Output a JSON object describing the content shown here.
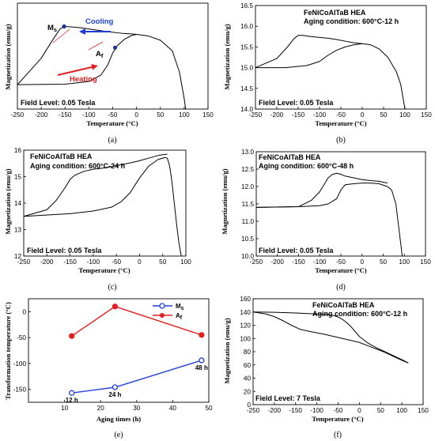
{
  "figure": {
    "captions": [
      "(a)",
      "(b)",
      "(c)",
      "(d)",
      "(e)",
      "(f)"
    ]
  },
  "chart_data": [
    {
      "id": "a",
      "type": "line",
      "xlabel": "Temperature (°C)",
      "ylabel": "Magnetization (emu/g)",
      "xlim": [
        -250,
        150
      ],
      "xticks": [
        -250,
        -200,
        -150,
        -100,
        -50,
        0,
        50,
        100,
        150
      ],
      "ylim": [
        0,
        10
      ],
      "yticks": [],
      "notes": [
        "Field Level: 0.05 Tesla"
      ],
      "annotations": {
        "ms": "M",
        "ms_sub": "s",
        "af": "A",
        "af_sub": "f",
        "cooling": "Cooling",
        "heating": "Heating"
      },
      "colors": {
        "curve": "#000000",
        "cooling": "#1f3fd8",
        "heating": "#e02020",
        "marker": "#1f2fa0"
      },
      "series": [
        {
          "x": [
            -250,
            -200,
            -175,
            -160,
            -150,
            -120,
            -90,
            -60,
            -30,
            -10,
            0
          ],
          "y": [
            2.3,
            4.8,
            6.6,
            7.6,
            7.8,
            7.7,
            7.5,
            7.3,
            7.15,
            7.1,
            7.05
          ]
        },
        {
          "x": [
            -250,
            -150,
            -100,
            -75,
            -60,
            -50,
            -40,
            -25,
            -10,
            0,
            25,
            50,
            75,
            90,
            100,
            103
          ],
          "y": [
            2.3,
            2.35,
            2.6,
            3.2,
            4.2,
            5.3,
            6.0,
            6.6,
            6.95,
            7.05,
            6.9,
            6.5,
            5.5,
            3.5,
            1.0,
            0.0
          ]
        }
      ],
      "markers": [
        {
          "x": -152,
          "y": 7.8
        },
        {
          "x": -45,
          "y": 5.8
        }
      ]
    },
    {
      "id": "b",
      "type": "line",
      "title_lines": [
        "FeNiCoAlTaB HEA",
        "Aging condition: 600°C-12 h"
      ],
      "xlabel": "Temperature (°C)",
      "ylabel": "Magnetization (emu/g)",
      "xlim": [
        -250,
        150
      ],
      "xticks": [
        -250,
        -200,
        -150,
        -100,
        -50,
        0,
        50,
        100,
        150
      ],
      "ylim": [
        14.0,
        16.5
      ],
      "yticks": [
        14.0,
        14.5,
        15.0,
        15.5,
        16.0,
        16.5
      ],
      "notes": [
        "Field Level: 0.05 Tesla"
      ],
      "series": [
        {
          "x": [
            -250,
            -200,
            -175,
            -160,
            -150,
            -140,
            -120,
            -100,
            -80,
            -60,
            -40,
            -20,
            0
          ],
          "y": [
            15.0,
            15.22,
            15.5,
            15.7,
            15.78,
            15.78,
            15.75,
            15.73,
            15.71,
            15.68,
            15.64,
            15.6,
            15.58
          ]
        },
        {
          "x": [
            -250,
            -180,
            -130,
            -100,
            -80,
            -60,
            -40,
            -20,
            0,
            20,
            40,
            60,
            80,
            90,
            95,
            100
          ],
          "y": [
            15.0,
            15.0,
            15.05,
            15.15,
            15.3,
            15.42,
            15.5,
            15.55,
            15.58,
            15.55,
            15.45,
            15.25,
            14.9,
            14.6,
            14.3,
            14.0
          ]
        }
      ]
    },
    {
      "id": "c",
      "type": "line",
      "title_lines": [
        "FeNiCoAlTaB HEA",
        "Aging condition: 600°C-24 h"
      ],
      "xlabel": "Temperature (°C)",
      "ylabel": "Magnetization (emu/g)",
      "xlim": [
        -250,
        100
      ],
      "xticks": [
        -250,
        -200,
        -150,
        -100,
        -50,
        0,
        50,
        100
      ],
      "ylim": [
        12,
        16
      ],
      "yticks": [
        12,
        13,
        14,
        15,
        16
      ],
      "notes": [
        "Field Level: 0.05 Tesla"
      ],
      "series": [
        {
          "x": [
            -250,
            -200,
            -180,
            -160,
            -150,
            -140,
            -120,
            -100,
            -80,
            -60,
            -40,
            -20,
            0,
            20,
            40,
            50,
            60
          ],
          "y": [
            13.5,
            13.75,
            14.1,
            14.6,
            14.9,
            15.05,
            15.2,
            15.28,
            15.32,
            15.38,
            15.45,
            15.52,
            15.6,
            15.7,
            15.8,
            15.83,
            15.85
          ]
        },
        {
          "x": [
            -250,
            -150,
            -100,
            -60,
            -40,
            -20,
            0,
            20,
            40,
            55,
            60,
            65,
            70,
            75,
            80,
            85,
            90
          ],
          "y": [
            13.5,
            13.6,
            13.7,
            13.85,
            14.05,
            14.4,
            14.95,
            15.4,
            15.65,
            15.72,
            15.7,
            15.4,
            14.8,
            14.0,
            13.2,
            12.5,
            12.0
          ]
        }
      ]
    },
    {
      "id": "d",
      "type": "line",
      "title_lines": [
        "FeNiCoAlTaB HEA",
        "Aging condition: 600°C-48 h"
      ],
      "xlabel": "Temperature (°C)",
      "ylabel": "Magnetization (emu/g)",
      "xlim": [
        -250,
        150
      ],
      "xticks": [
        -250,
        -200,
        -150,
        -100,
        -50,
        0,
        50,
        100,
        150
      ],
      "ylim": [
        10.0,
        13.0
      ],
      "yticks": [
        10.0,
        10.5,
        11.0,
        11.5,
        12.0,
        12.5,
        13.0
      ],
      "notes": [
        "Field Level: 0.05 Tesla"
      ],
      "series": [
        {
          "x": [
            -250,
            -150,
            -120,
            -100,
            -90,
            -80,
            -70,
            -60,
            -50,
            -40,
            -20,
            0,
            20,
            40,
            60
          ],
          "y": [
            11.4,
            11.42,
            11.6,
            11.85,
            12.05,
            12.25,
            12.35,
            12.38,
            12.35,
            12.3,
            12.25,
            12.2,
            12.17,
            12.15,
            12.1
          ]
        },
        {
          "x": [
            -250,
            -150,
            -100,
            -80,
            -60,
            -50,
            -40,
            -20,
            0,
            20,
            40,
            60,
            70,
            80,
            85,
            90,
            95
          ],
          "y": [
            11.4,
            11.42,
            11.45,
            11.5,
            11.65,
            11.9,
            12.05,
            12.08,
            12.1,
            12.1,
            12.08,
            12.0,
            11.9,
            11.5,
            11.0,
            10.5,
            10.0
          ]
        }
      ]
    },
    {
      "id": "e",
      "type": "line",
      "xlabel": "Aging times (h)",
      "ylabel": "Transformation temperature (°C)",
      "xlim": [
        0,
        50
      ],
      "xticks": [
        10,
        20,
        30,
        40,
        50
      ],
      "ylim": [
        -175,
        25
      ],
      "yticks": [
        -150,
        -100,
        -50,
        0
      ],
      "legend": {
        "placement": "top-right",
        "ms": "M",
        "ms_sub": "s",
        "af": "A",
        "af_sub": "f"
      },
      "colors": {
        "ms": "#1f3fd8",
        "af": "#e02020"
      },
      "point_labels": [
        "12 h",
        "24 h",
        "48 h"
      ],
      "series": [
        {
          "name": "Ms",
          "x": [
            12,
            24,
            48
          ],
          "y": [
            -157,
            -146,
            -94
          ]
        },
        {
          "name": "Af",
          "x": [
            12,
            24,
            48
          ],
          "y": [
            -47,
            10,
            -45
          ]
        }
      ]
    },
    {
      "id": "f",
      "type": "line",
      "title_lines": [
        "FeNiCoAlTaB HEA",
        "Aging condition: 600°C-12 h"
      ],
      "xlabel": "Temperature (°C)",
      "ylabel": "Magnetization (emu/g)",
      "xlim": [
        -250,
        150
      ],
      "xticks": [
        -250,
        -200,
        -150,
        -100,
        -50,
        0,
        50,
        100,
        150
      ],
      "ylim": [
        0,
        160
      ],
      "yticks": [
        0,
        20,
        40,
        60,
        80,
        100,
        120,
        140,
        160
      ],
      "notes": [
        "Field Level: 7 Tesla"
      ],
      "series": [
        {
          "x": [
            -250,
            -220,
            -200,
            -180,
            -160,
            -140,
            -120,
            -100,
            -80,
            -60,
            -40,
            -20,
            0,
            20,
            40,
            60,
            80,
            100,
            115
          ],
          "y": [
            140,
            137,
            133,
            127,
            120,
            114,
            111,
            108.5,
            106,
            103,
            100,
            97,
            94,
            89,
            84,
            79,
            73,
            67,
            63
          ]
        },
        {
          "x": [
            -250,
            -200,
            -150,
            -100,
            -75,
            -60,
            -50,
            -40,
            -30,
            -20,
            0,
            20,
            40,
            60,
            80,
            100,
            115
          ],
          "y": [
            140,
            139.5,
            138.5,
            137,
            136,
            134.5,
            132.5,
            129,
            124,
            118,
            103,
            93,
            86,
            80,
            74,
            68,
            63
          ]
        }
      ]
    }
  ]
}
